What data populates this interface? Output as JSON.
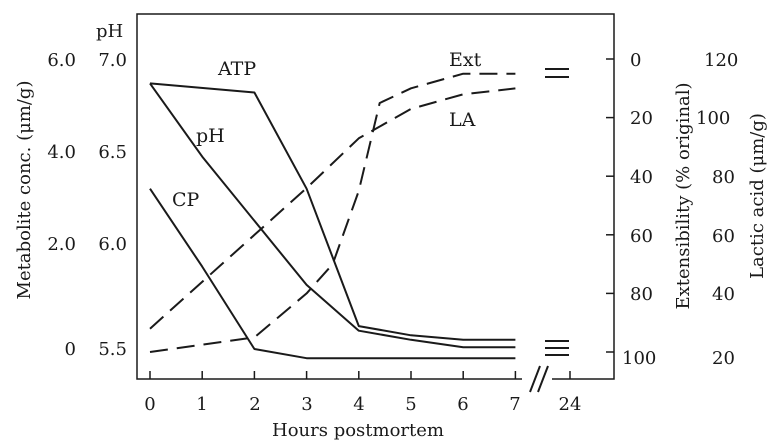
{
  "chart_data": {
    "type": "line",
    "title": "",
    "xlabel": "Hours postmortem",
    "x_ticks": [
      "0",
      "1",
      "2",
      "3",
      "4",
      "5",
      "6",
      "7",
      "24"
    ],
    "axes": {
      "metabolite": {
        "label": "Metabolite conc. (μm/g)",
        "ticks": [
          "0",
          "2.0",
          "4.0",
          "6.0"
        ],
        "range": [
          0,
          6.0
        ]
      },
      "ph": {
        "label": "pH",
        "ticks": [
          "5.5",
          "6.0",
          "6.5",
          "7.0"
        ],
        "range": [
          5.45,
          7.05
        ]
      },
      "extensibility": {
        "label": "Extensibility (% original)",
        "ticks": [
          "0",
          "20",
          "40",
          "60",
          "80",
          "100"
        ],
        "range": [
          0,
          100
        ],
        "inverted": true
      },
      "lactic": {
        "label": "Lactic acid (μm/g)",
        "ticks": [
          "20",
          "40",
          "60",
          "80",
          "100",
          "120"
        ],
        "range": [
          20,
          120
        ]
      }
    },
    "series": [
      {
        "name": "ATP",
        "axis": "metabolite",
        "style": "solid",
        "x": [
          0,
          2,
          3,
          4,
          5,
          6,
          7
        ],
        "y": [
          5.8,
          5.6,
          3.5,
          0.5,
          0.3,
          0.2,
          0.2
        ],
        "label_at": [
          1.75,
          5.95
        ]
      },
      {
        "name": "pH",
        "axis": "ph",
        "style": "solid",
        "x": [
          0,
          1,
          2,
          3,
          4,
          5,
          6,
          7
        ],
        "y": [
          6.95,
          6.55,
          6.2,
          5.85,
          5.6,
          5.55,
          5.51,
          5.51
        ],
        "label_at": [
          1.12,
          6.45
        ]
      },
      {
        "name": "CP",
        "axis": "metabolite",
        "style": "solid",
        "x": [
          0,
          1,
          2,
          3,
          4,
          5,
          6,
          7
        ],
        "y": [
          3.5,
          1.8,
          0.0,
          -0.2,
          -0.2,
          -0.2,
          -0.2,
          -0.2
        ],
        "label_at": [
          0.72,
          3.2
        ]
      },
      {
        "name": "Ext",
        "axis": "extensibility",
        "style": "dashed",
        "x": [
          0,
          2,
          3,
          3.5,
          4,
          4.4,
          5,
          6,
          7
        ],
        "y": [
          100,
          95,
          80,
          70,
          45,
          15,
          10,
          5,
          5
        ],
        "label_at": [
          5.85,
          1.0
        ]
      },
      {
        "name": "LA",
        "axis": "lactic",
        "style": "dashed",
        "x": [
          0,
          2,
          3,
          4,
          5,
          6,
          7
        ],
        "y": [
          30,
          62,
          78,
          95,
          105,
          110,
          112
        ],
        "label_at": [
          5.85,
          100
        ]
      }
    ]
  }
}
